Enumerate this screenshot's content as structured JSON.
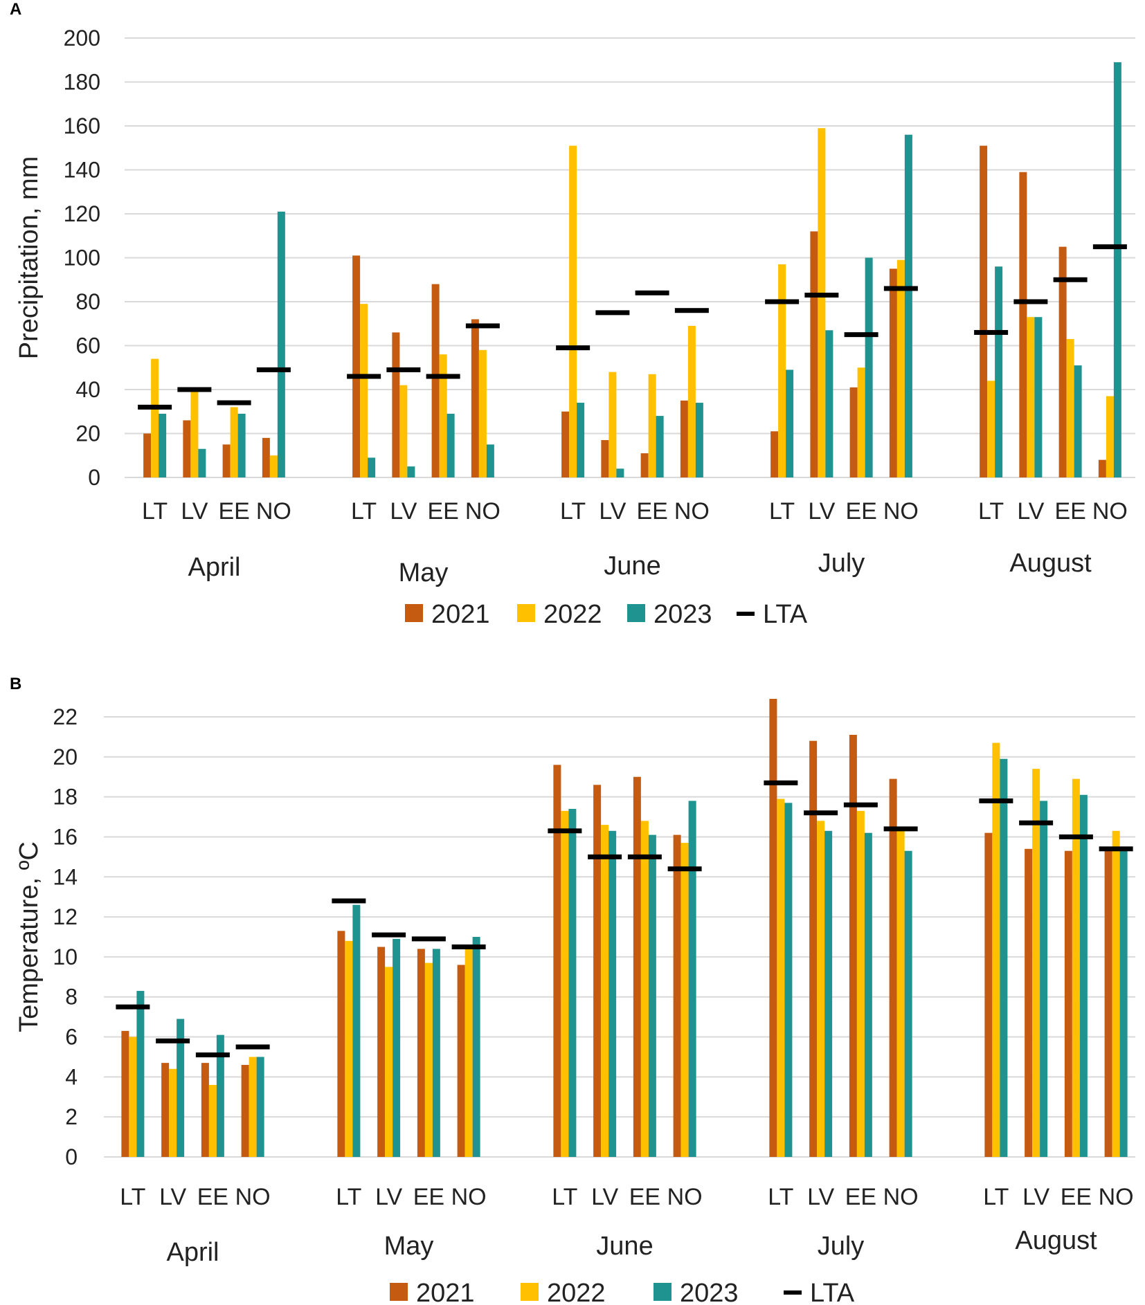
{
  "colors": {
    "2021": "#C55A11",
    "2022": "#FFC000",
    "2023": "#1F9390",
    "LTA": "#000000",
    "grid": "#D9D9D9"
  },
  "chart_data": [
    {
      "panel_label": "A",
      "type": "bar",
      "ylabel": "Precipitation, mm",
      "ylim": [
        0,
        200
      ],
      "yticks": [
        "0",
        "20",
        "40",
        "60",
        "80",
        "100",
        "120",
        "140",
        "160",
        "180",
        "200"
      ],
      "months": [
        "April",
        "May",
        "June",
        "July",
        "August"
      ],
      "stations": [
        "LT",
        "LV",
        "EE",
        "NO"
      ],
      "legend": [
        "2021",
        "2022",
        "2023",
        "LTA"
      ],
      "series": [
        {
          "name": "2021",
          "values": [
            20,
            26,
            15,
            18,
            101,
            66,
            88,
            72,
            30,
            17,
            11,
            35,
            21,
            112,
            41,
            95,
            151,
            139,
            105,
            8
          ]
        },
        {
          "name": "2022",
          "values": [
            54,
            39,
            32,
            10,
            79,
            42,
            56,
            58,
            151,
            48,
            47,
            69,
            97,
            159,
            50,
            99,
            44,
            73,
            63,
            37
          ]
        },
        {
          "name": "2023",
          "values": [
            29,
            13,
            29,
            121,
            9,
            5,
            29,
            15,
            34,
            4,
            28,
            34,
            49,
            67,
            100,
            156,
            96,
            73,
            51,
            189
          ]
        }
      ],
      "lta": [
        32,
        40,
        34,
        49,
        46,
        49,
        46,
        69,
        59,
        75,
        84,
        76,
        80,
        83,
        65,
        86,
        66,
        80,
        90,
        105
      ]
    },
    {
      "panel_label": "B",
      "type": "bar",
      "ylabel": "Temperature, ºC",
      "ylim": [
        0,
        22
      ],
      "yticks": [
        "0",
        "2",
        "4",
        "6",
        "8",
        "10",
        "12",
        "14",
        "16",
        "18",
        "20",
        "22"
      ],
      "months": [
        "April",
        "May",
        "June",
        "July",
        "August"
      ],
      "stations": [
        "LT",
        "LV",
        "EE",
        "NO"
      ],
      "legend": [
        "2021",
        "2022",
        "2023",
        "LTA"
      ],
      "series": [
        {
          "name": "2021",
          "values": [
            6.3,
            4.7,
            4.7,
            4.6,
            11.3,
            10.5,
            10.4,
            9.6,
            19.6,
            18.6,
            19.0,
            16.1,
            22.9,
            20.8,
            21.1,
            18.9,
            16.2,
            15.4,
            15.3,
            15.3
          ]
        },
        {
          "name": "2022",
          "values": [
            6.0,
            4.4,
            3.6,
            5.0,
            10.8,
            9.5,
            9.7,
            10.5,
            17.3,
            16.6,
            16.8,
            15.7,
            17.9,
            16.8,
            17.3,
            16.3,
            20.7,
            19.4,
            18.9,
            16.3
          ]
        },
        {
          "name": "2023",
          "values": [
            8.3,
            6.9,
            6.1,
            5.0,
            12.6,
            10.9,
            10.4,
            11.0,
            17.4,
            16.3,
            16.1,
            17.8,
            17.7,
            16.3,
            16.2,
            15.3,
            19.9,
            17.8,
            18.1,
            15.3
          ]
        }
      ],
      "lta": [
        7.5,
        5.8,
        5.1,
        5.5,
        12.8,
        11.1,
        10.9,
        10.5,
        16.3,
        15.0,
        15.0,
        14.4,
        18.7,
        17.2,
        17.6,
        16.4,
        17.8,
        16.7,
        16.0,
        15.4
      ]
    }
  ]
}
